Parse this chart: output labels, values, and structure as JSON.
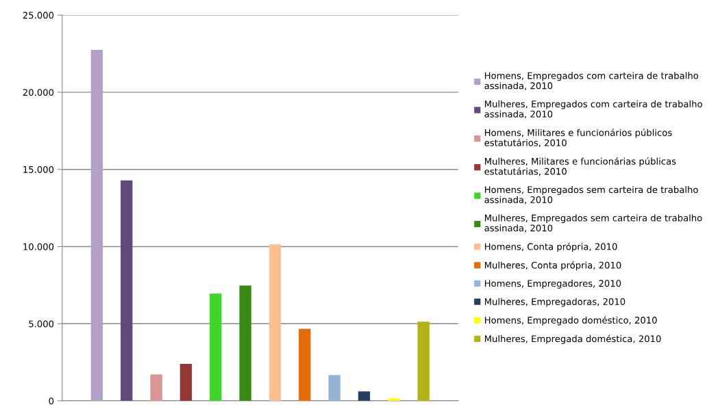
{
  "chart_data": {
    "type": "bar",
    "categories": [
      null
    ],
    "series": [
      {
        "name": "Homens, Empregados com carteira de trabalho assinada, 2010",
        "color": "#b1a0c7",
        "values": [
          22750
        ]
      },
      {
        "name": "Mulheres, Empregados com carteira de trabalho assinada, 2010",
        "color": "#604a7b",
        "values": [
          14290
        ]
      },
      {
        "name": "Homens, Militares e funcionários públicos estatutários, 2010",
        "color": "#d99694",
        "values": [
          1710
        ]
      },
      {
        "name": "Mulheres, Militares e funcionárias públicas estatutárias, 2010",
        "color": "#953735",
        "values": [
          2400
        ]
      },
      {
        "name": "Homens, Empregados sem carteira de trabalho assinada, 2010",
        "color": "#3ed62a",
        "values": [
          6950
        ]
      },
      {
        "name": "Mulheres, Empregados sem carteira de trabalho assinada, 2010",
        "color": "#378a12",
        "values": [
          7470
        ]
      },
      {
        "name": "Homens, Conta própria, 2010",
        "color": "#fac090",
        "values": [
          10140
        ]
      },
      {
        "name": "Mulheres, Conta própria, 2010",
        "color": "#e46c0a",
        "values": [
          4670
        ]
      },
      {
        "name": "Homens, Empregadores, 2010",
        "color": "#95b3d7",
        "values": [
          1670
        ]
      },
      {
        "name": "Mulheres, Empregadoras, 2010",
        "color": "#243f60",
        "values": [
          610
        ]
      },
      {
        "name": "Homens, Empregado doméstico, 2010",
        "color": "#ffff00",
        "values": [
          150
        ]
      },
      {
        "name": "Mulheres, Empregada doméstica, 2010",
        "color": "#b3b319",
        "values": [
          5130
        ]
      }
    ],
    "ylim": [
      0,
      25000
    ],
    "yticks": [
      0,
      {
        "value": 5000,
        "label": "5.000"
      },
      {
        "value": 10000,
        "label": "10.000"
      },
      {
        "value": 15000,
        "label": "15.000"
      },
      {
        "value": 20000,
        "label": "20.000"
      },
      {
        "value": 25000,
        "label": "25.000"
      }
    ],
    "grid": "y",
    "legend": "right",
    "tick_labels": "y"
  }
}
